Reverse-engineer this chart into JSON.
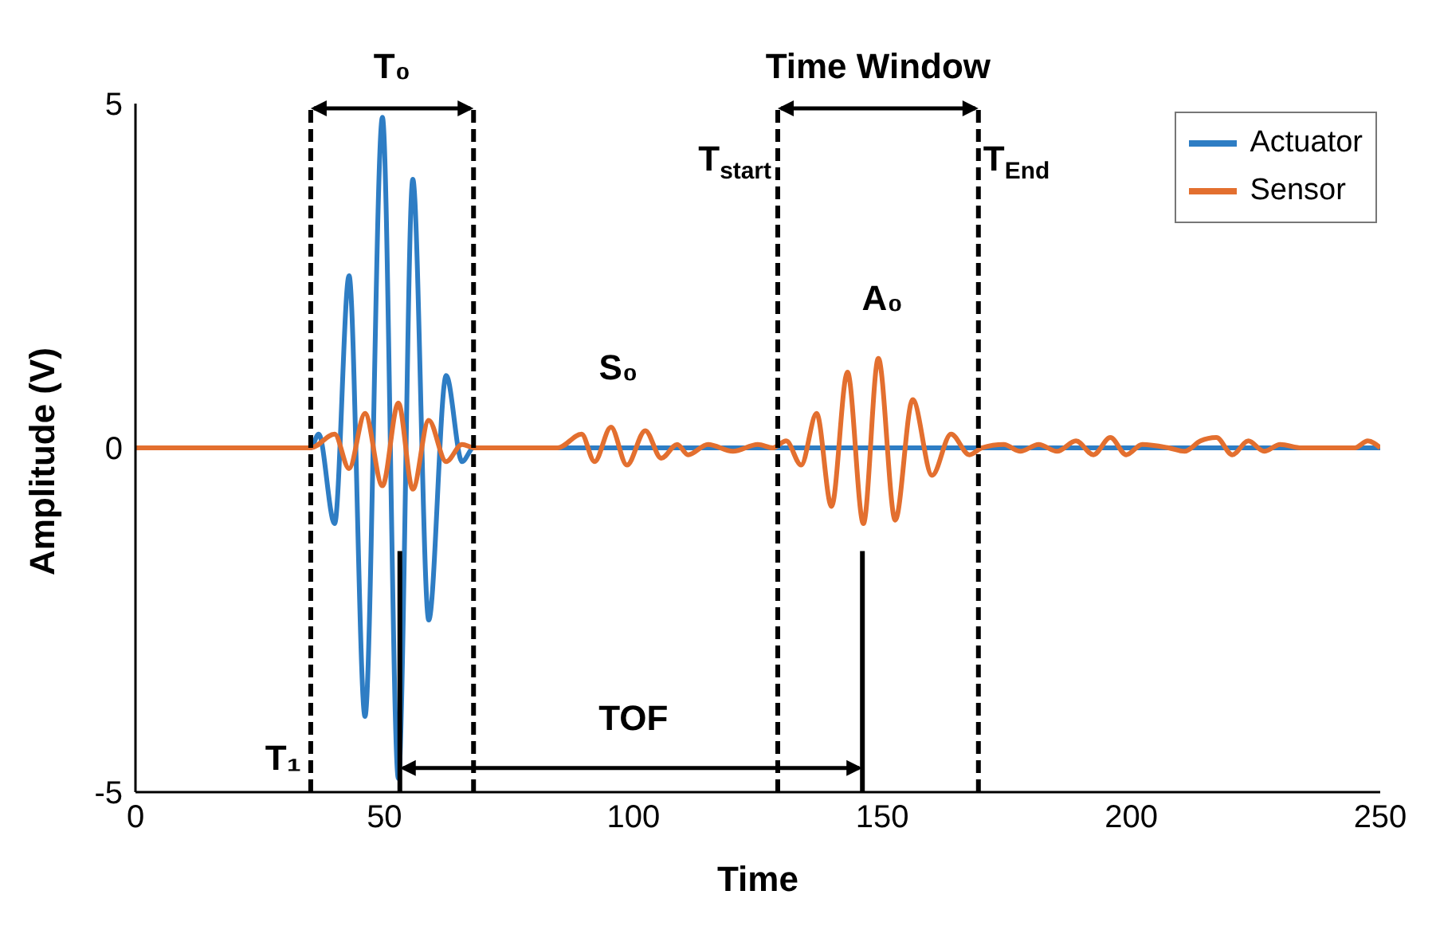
{
  "chart_data": {
    "type": "line",
    "xlabel": "Time",
    "ylabel": "Amplitude (V)",
    "xlim": [
      0,
      250
    ],
    "xticks": [
      0,
      50,
      100,
      150,
      200,
      250
    ],
    "ylim": [
      -5,
      5
    ],
    "yticks": [
      -5,
      0,
      5
    ],
    "grid": false,
    "legend": "top right",
    "marker": "none",
    "line_style": "solid",
    "series": [
      {
        "name": "Actuator",
        "color": "#2e7dc4",
        "x": [
          0,
          35.2,
          36.8,
          40,
          42.9,
          46.1,
          49.6,
          52.8,
          55.7,
          58.9,
          62.4,
          65.6,
          67.9,
          250
        ],
        "values": [
          0,
          0,
          0.2,
          -1.1,
          2.5,
          -3.9,
          4.8,
          -4.8,
          3.9,
          -2.5,
          1.05,
          -0.2,
          0,
          0
        ]
      },
      {
        "name": "Sensor",
        "color": "#e36f2f",
        "x": [
          0,
          35.2,
          40,
          42.9,
          46.1,
          49.6,
          52.8,
          55.7,
          58.9,
          62.4,
          65.6,
          68,
          84.8,
          89.6,
          92.2,
          95.5,
          98.7,
          102.4,
          105.6,
          108.8,
          111,
          115,
          120,
          125,
          128,
          130.7,
          133.7,
          136.8,
          139.8,
          143,
          146.2,
          149.2,
          152.6,
          156.1,
          160,
          163.8,
          167.5,
          170,
          174.4,
          177.7,
          181.4,
          185.1,
          188.9,
          192.4,
          195.8,
          199,
          202.2,
          207.5,
          210.7,
          213.9,
          217.1,
          220.3,
          223.5,
          226.7,
          229.9,
          234.2,
          244.9,
          247.5,
          250
        ],
        "values": [
          0,
          0,
          0.2,
          -0.3,
          0.5,
          -0.55,
          0.65,
          -0.6,
          0.4,
          -0.2,
          0.05,
          0,
          0,
          0.2,
          -0.2,
          0.3,
          -0.25,
          0.25,
          -0.15,
          0.05,
          -0.1,
          0.05,
          -0.05,
          0.05,
          0,
          0.1,
          -0.25,
          0.5,
          -0.85,
          1.1,
          -1.1,
          1.3,
          -1.05,
          0.7,
          -0.4,
          0.2,
          -0.1,
          0,
          0.05,
          -0.05,
          0.05,
          -0.05,
          0.1,
          -0.1,
          0.15,
          -0.1,
          0.05,
          0,
          -0.05,
          0.1,
          0.15,
          -0.1,
          0.1,
          -0.05,
          0.05,
          0,
          0,
          0.1,
          0
        ]
      }
    ],
    "ref_lines": [
      {
        "axis": "x",
        "value": 35.2,
        "label": "T₁",
        "color": "#000000",
        "line_style": "dashed"
      },
      {
        "axis": "x",
        "value": 67.9,
        "label": null,
        "color": "#000000",
        "line_style": "dashed"
      },
      {
        "axis": "x",
        "value": 129,
        "label": "T$_{start}$",
        "color": "#000000",
        "line_style": "dashed"
      },
      {
        "axis": "x",
        "value": 169.3,
        "label": "T$_{End}$",
        "color": "#000000",
        "line_style": "dashed"
      },
      {
        "axis": "x",
        "value": 53.1,
        "label": null,
        "color": "#000000",
        "line_style": "solid"
      },
      {
        "axis": "x",
        "value": 146,
        "label": null,
        "color": "#000000",
        "line_style": "solid"
      }
    ],
    "annotations": [
      "T₀",
      "Time Window",
      "S₀",
      "A₀",
      "TOF"
    ]
  }
}
